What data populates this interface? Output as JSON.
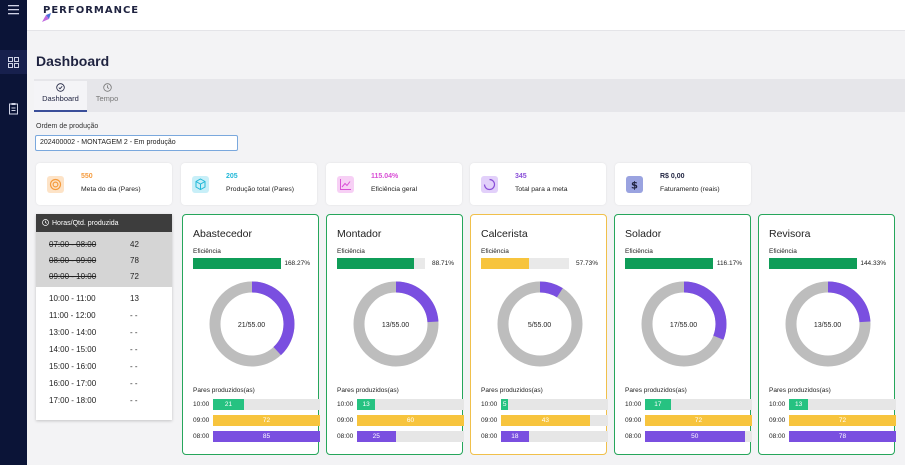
{
  "app": {
    "logo": "PERFORMANCE"
  },
  "nav": {
    "items": [
      "menu-icon",
      "grid-icon",
      "clipboard-icon"
    ]
  },
  "page": {
    "title": "Dashboard"
  },
  "tabs": [
    {
      "label": "Dashboard",
      "active": true
    },
    {
      "label": "Tempo",
      "active": false
    }
  ],
  "order": {
    "label": "Ordem de produção",
    "value": "202400002 - MONTAGEM 2 - Em produção"
  },
  "kpis": [
    {
      "value": "550",
      "label": "Meta do dia (Pares)",
      "color": "#f59b3d",
      "bg": "#fde3c7",
      "icon": "target-icon"
    },
    {
      "value": "205",
      "label": "Produção total (Pares)",
      "color": "#22b8d8",
      "bg": "#c8eff8",
      "icon": "cube-icon"
    },
    {
      "value": "115.04%",
      "label": "Eficiência geral",
      "color": "#d94fd6",
      "bg": "#f7d0f5",
      "icon": "chart-icon"
    },
    {
      "value": "345",
      "label": "Total para a meta",
      "color": "#8a4fd8",
      "bg": "#e2d0fa",
      "icon": "loader-icon"
    },
    {
      "value": "R$ 0,00",
      "label": "Faturamento (reais)",
      "color": "#3b4f9a",
      "bg": "#9aa3e0",
      "icon": "dollar-icon"
    }
  ],
  "hours": {
    "header": "Horas/Qtd. produzida",
    "past": [
      {
        "time": "07:00 - 08:00",
        "qty": "42"
      },
      {
        "time": "08:00 - 09:00",
        "qty": "78"
      },
      {
        "time": "09:00 - 10:00",
        "qty": "72"
      }
    ],
    "future": [
      {
        "time": "10:00 - 11:00",
        "qty": "13"
      },
      {
        "time": "11:00 - 12:00",
        "qty": "- -"
      },
      {
        "time": "13:00 - 14:00",
        "qty": "- -"
      },
      {
        "time": "14:00 - 15:00",
        "qty": "- -"
      },
      {
        "time": "15:00 - 16:00",
        "qty": "- -"
      },
      {
        "time": "16:00 - 17:00",
        "qty": "- -"
      },
      {
        "time": "17:00 - 18:00",
        "qty": "- -"
      }
    ]
  },
  "labels": {
    "efficiency": "Eficiência",
    "pairs": "Pares produzidos(as)"
  },
  "colors": {
    "green": "#26a65b",
    "yellow": "#f7c43d",
    "purple": "#7a4fe0",
    "gray": "#bdbdbd"
  },
  "cards": [
    {
      "name": "Abastecedor",
      "eff_pct": "168.27%",
      "eff_fill": 1.0,
      "eff_color": "#0f9d58",
      "border": "green",
      "donut_text": "21/55.00",
      "donut_fraction": 0.38,
      "rows": [
        {
          "time": "10:00",
          "value": "21",
          "fraction": 0.29,
          "color": "#26c281"
        },
        {
          "time": "09:00",
          "value": "72",
          "fraction": 1.0,
          "color": "#f7c43d"
        },
        {
          "time": "08:00",
          "value": "85",
          "fraction": 1.0,
          "color": "#7a4fe0"
        }
      ]
    },
    {
      "name": "Montador",
      "eff_pct": "88.71%",
      "eff_fill": 0.88,
      "eff_color": "#0f9d58",
      "border": "green",
      "donut_text": "13/55.00",
      "donut_fraction": 0.24,
      "rows": [
        {
          "time": "10:00",
          "value": "13",
          "fraction": 0.17,
          "color": "#26c281"
        },
        {
          "time": "09:00",
          "value": "60",
          "fraction": 1.0,
          "color": "#f7c43d"
        },
        {
          "time": "08:00",
          "value": "25",
          "fraction": 0.36,
          "color": "#7a4fe0"
        }
      ]
    },
    {
      "name": "Calcerista",
      "eff_pct": "57.73%",
      "eff_fill": 0.55,
      "eff_color": "#f7c43d",
      "border": "yellow",
      "donut_text": "5/55.00",
      "donut_fraction": 0.09,
      "rows": [
        {
          "time": "10:00",
          "value": "5",
          "fraction": 0.07,
          "color": "#26c281"
        },
        {
          "time": "09:00",
          "value": "43",
          "fraction": 0.83,
          "color": "#f7c43d"
        },
        {
          "time": "08:00",
          "value": "18",
          "fraction": 0.26,
          "color": "#7a4fe0"
        }
      ]
    },
    {
      "name": "Solador",
      "eff_pct": "116.17%",
      "eff_fill": 1.0,
      "eff_color": "#0f9d58",
      "border": "green",
      "donut_text": "17/55.00",
      "donut_fraction": 0.31,
      "rows": [
        {
          "time": "10:00",
          "value": "17",
          "fraction": 0.24,
          "color": "#26c281"
        },
        {
          "time": "09:00",
          "value": "72",
          "fraction": 1.0,
          "color": "#f7c43d"
        },
        {
          "time": "08:00",
          "value": "50",
          "fraction": 0.93,
          "color": "#7a4fe0"
        }
      ]
    },
    {
      "name": "Revisora",
      "eff_pct": "144.33%",
      "eff_fill": 1.0,
      "eff_color": "#0f9d58",
      "border": "green",
      "donut_text": "13/55.00",
      "donut_fraction": 0.24,
      "rows": [
        {
          "time": "10:00",
          "value": "13",
          "fraction": 0.18,
          "color": "#26c281"
        },
        {
          "time": "09:00",
          "value": "72",
          "fraction": 1.0,
          "color": "#f7c43d"
        },
        {
          "time": "08:00",
          "value": "78",
          "fraction": 1.0,
          "color": "#7a4fe0"
        }
      ]
    }
  ]
}
